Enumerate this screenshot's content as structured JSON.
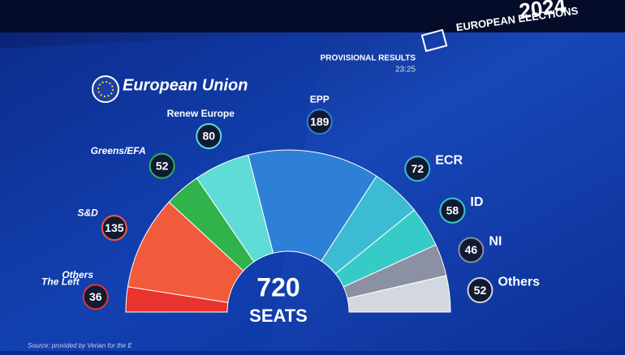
{
  "header": {
    "logo_text": "European Union",
    "status": "PROVISIONAL RESULTS",
    "time": "23:25",
    "event": "EUROPEAN ELECTIONS",
    "year": "2024"
  },
  "chart_data": {
    "type": "parliament",
    "categories": [
      "Others",
      "The Left",
      "S&D",
      "Greens/EFA",
      "Renew Europe",
      "EPP",
      "ECR",
      "ID",
      "NI",
      "Others"
    ],
    "values": [
      null,
      36,
      135,
      52,
      80,
      189,
      72,
      58,
      46,
      52
    ],
    "colors": [
      "#b9bcc4",
      "#e8342c",
      "#f25a3c",
      "#2fb34a",
      "#5fdcd6",
      "#2e80d6",
      "#3cbcd4",
      "#36cbc6",
      "#8b90a2",
      "#d3d7df"
    ],
    "total": 720,
    "total_label": "SEATS"
  },
  "source": "Source: provided by Verian for the E"
}
